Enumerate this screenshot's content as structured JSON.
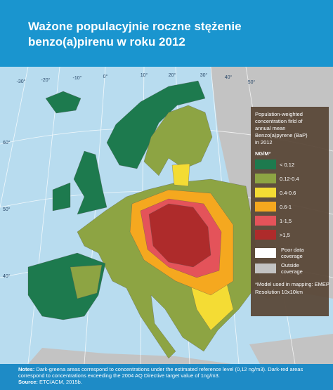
{
  "header": {
    "title_lines": [
      "Ważone populacyjnie roczne stężenie",
      "benzo(a)pirenu  w roku 2012"
    ]
  },
  "graticule_labels": {
    "top": [
      "-30°",
      "-20°",
      "-10°",
      "0°",
      "10°",
      "20°",
      "30°",
      "40°",
      "50°"
    ],
    "left": [
      "60°",
      "50°",
      "40°"
    ]
  },
  "legend": {
    "title_lines": [
      "Population-weighted",
      "concentration firld of",
      "annual mean",
      "Benzo(a)pyrene (BaP)",
      "in 2012"
    ],
    "unit": "NG/M³",
    "items": [
      {
        "label": "< 0.12",
        "color": "#1d7a4e"
      },
      {
        "label": "0.12-0.4",
        "color": "#8da443"
      },
      {
        "label": "0.4-0.6",
        "color": "#f4dc34"
      },
      {
        "label": "0.6-1",
        "color": "#f5a81f"
      },
      {
        "label": "1-1,5",
        "color": "#e4535a"
      },
      {
        "label": ">1,5",
        "color": "#ae2b2b"
      }
    ],
    "coverage": [
      {
        "label_lines": [
          "Poor data",
          "coverage"
        ],
        "color": "#ffffff"
      },
      {
        "label_lines": [
          "Outside",
          "coverage"
        ],
        "color": "#c3c3c3"
      }
    ],
    "notes": [
      "*Model used in mapping: EMEP",
      "Resolution 10x10km"
    ]
  },
  "footer": {
    "notes_label": "Notes:",
    "notes": "Dark-greena areas correspond to concentrations under the estimated reference level (0,12 ng/m3). Dark-red areas correspond to concentrations exceeding the 2004 AQ Directive target value of 1ng/m3.",
    "source_label": "Source:",
    "source": "ETC/ACM, 2015b."
  }
}
